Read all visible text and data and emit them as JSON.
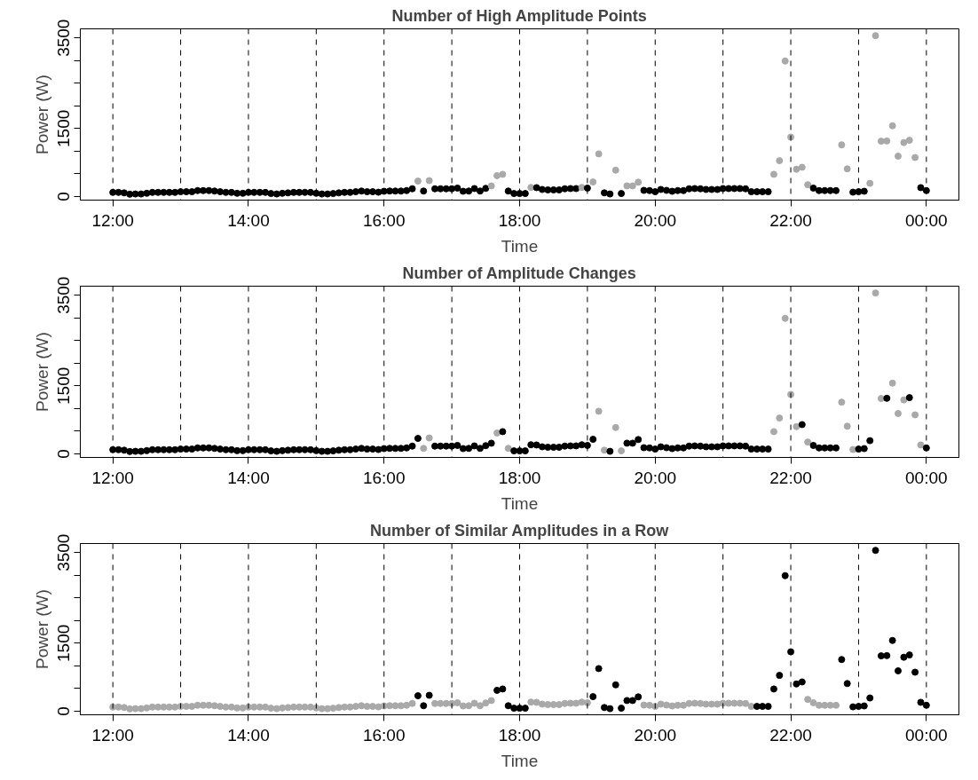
{
  "chart_data": [
    {
      "type": "scatter",
      "title": "Number of High Amplitude Points",
      "xlabel": "Time",
      "ylabel": "Power (W)",
      "marker": "circle",
      "grid": false,
      "xlim": [
        11.52,
        24.48
      ],
      "ylim": [
        -80,
        3700
      ],
      "xticks": [
        {
          "value": 12,
          "label": "12:00"
        },
        {
          "value": 14,
          "label": "14:00"
        },
        {
          "value": 16,
          "label": "16:00"
        },
        {
          "value": 18,
          "label": "18:00"
        },
        {
          "value": 20,
          "label": "20:00"
        },
        {
          "value": 22,
          "label": "22:00"
        },
        {
          "value": 24,
          "label": "00:00"
        }
      ],
      "yticks": [
        0,
        {
          "value": 500,
          "label": null
        },
        {
          "value": 1000,
          "label": null
        },
        1500,
        {
          "value": 2000,
          "label": null
        },
        {
          "value": 2500,
          "label": null
        },
        {
          "value": 3000,
          "label": null
        },
        3500
      ],
      "ref_lines": [
        {
          "axis": "x",
          "value": 12,
          "line_style": "dashed"
        },
        {
          "axis": "x",
          "value": 13,
          "line_style": "dashed"
        },
        {
          "axis": "x",
          "value": 14,
          "line_style": "dashed"
        },
        {
          "axis": "x",
          "value": 15,
          "line_style": "dashed"
        },
        {
          "axis": "x",
          "value": 16,
          "line_style": "dashed"
        },
        {
          "axis": "x",
          "value": 17,
          "line_style": "dashed"
        },
        {
          "axis": "x",
          "value": 18,
          "line_style": "dashed"
        },
        {
          "axis": "x",
          "value": 19,
          "line_style": "dashed"
        },
        {
          "axis": "x",
          "value": 20,
          "line_style": "dashed"
        },
        {
          "axis": "x",
          "value": 21,
          "line_style": "dashed"
        },
        {
          "axis": "x",
          "value": 22,
          "line_style": "dashed"
        },
        {
          "axis": "x",
          "value": 23,
          "line_style": "dashed"
        },
        {
          "axis": "x",
          "value": 24,
          "line_style": "dashed"
        }
      ],
      "x": [
        12,
        12.083,
        12.167,
        12.25,
        12.333,
        12.417,
        12.5,
        12.583,
        12.667,
        12.75,
        12.833,
        12.917,
        13,
        13.083,
        13.167,
        13.25,
        13.333,
        13.417,
        13.5,
        13.583,
        13.667,
        13.75,
        13.833,
        13.917,
        14,
        14.083,
        14.167,
        14.25,
        14.333,
        14.417,
        14.5,
        14.583,
        14.667,
        14.75,
        14.833,
        14.917,
        15,
        15.083,
        15.167,
        15.25,
        15.333,
        15.417,
        15.5,
        15.583,
        15.667,
        15.75,
        15.833,
        15.917,
        16,
        16.083,
        16.167,
        16.25,
        16.333,
        16.417,
        16.5,
        16.583,
        16.667,
        16.75,
        16.833,
        16.917,
        17,
        17.083,
        17.167,
        17.25,
        17.333,
        17.417,
        17.5,
        17.583,
        17.667,
        17.75,
        17.833,
        17.917,
        18,
        18.083,
        18.167,
        18.25,
        18.333,
        18.417,
        18.5,
        18.583,
        18.667,
        18.75,
        18.833,
        18.917,
        19,
        19.083,
        19.167,
        19.25,
        19.333,
        19.417,
        19.5,
        19.583,
        19.667,
        19.75,
        19.833,
        19.917,
        20,
        20.083,
        20.167,
        20.25,
        20.333,
        20.417,
        20.5,
        20.583,
        20.667,
        20.75,
        20.833,
        20.917,
        21,
        21.083,
        21.167,
        21.25,
        21.333,
        21.417,
        21.5,
        21.583,
        21.667,
        21.75,
        21.833,
        21.917,
        22,
        22.083,
        22.167,
        22.25,
        22.333,
        22.417,
        22.5,
        22.583,
        22.667,
        22.75,
        22.833,
        22.917,
        23,
        23.083,
        23.167,
        23.25,
        23.333,
        23.417,
        23.5,
        23.583,
        23.667,
        23.75,
        23.833,
        23.917,
        24
      ],
      "values": [
        90,
        90,
        80,
        50,
        55,
        55,
        70,
        90,
        90,
        90,
        90,
        90,
        105,
        105,
        105,
        130,
        130,
        130,
        120,
        105,
        90,
        90,
        70,
        70,
        90,
        90,
        90,
        90,
        65,
        55,
        70,
        80,
        90,
        90,
        90,
        90,
        70,
        55,
        55,
        65,
        80,
        90,
        90,
        105,
        120,
        105,
        105,
        95,
        115,
        120,
        120,
        120,
        130,
        170,
        340,
        120,
        350,
        170,
        170,
        170,
        170,
        185,
        115,
        120,
        175,
        120,
        180,
        234,
        460,
        490,
        120,
        65,
        65,
        65,
        200,
        195,
        155,
        145,
        145,
        145,
        170,
        175,
        175,
        200,
        185,
        320,
        940,
        80,
        55,
        580,
        65,
        235,
        235,
        315,
        135,
        130,
        105,
        155,
        135,
        115,
        130,
        130,
        170,
        175,
        170,
        155,
        155,
        155,
        175,
        175,
        175,
        175,
        170,
        105,
        105,
        105,
        105,
        490,
        790,
        2990,
        1310,
        600,
        645,
        260,
        185,
        130,
        130,
        130,
        130,
        1140,
        610,
        95,
        105,
        115,
        290,
        3550,
        1220,
        1225,
        1560,
        890,
        1190,
        1240,
        860,
        195,
        130
      ],
      "colors": [
        "#000000",
        "#000000",
        "#000000",
        "#000000",
        "#000000",
        "#000000",
        "#000000",
        "#000000",
        "#000000",
        "#000000",
        "#000000",
        "#000000",
        "#000000",
        "#000000",
        "#000000",
        "#000000",
        "#000000",
        "#000000",
        "#000000",
        "#000000",
        "#000000",
        "#000000",
        "#000000",
        "#000000",
        "#000000",
        "#000000",
        "#000000",
        "#000000",
        "#000000",
        "#000000",
        "#000000",
        "#000000",
        "#000000",
        "#000000",
        "#000000",
        "#000000",
        "#000000",
        "#000000",
        "#000000",
        "#000000",
        "#000000",
        "#000000",
        "#000000",
        "#000000",
        "#000000",
        "#000000",
        "#000000",
        "#000000",
        "#000000",
        "#000000",
        "#000000",
        "#000000",
        "#000000",
        "#000000",
        "#a9a9a9",
        "#000000",
        "#a9a9a9",
        "#000000",
        "#000000",
        "#000000",
        "#000000",
        "#000000",
        "#000000",
        "#000000",
        "#000000",
        "#000000",
        "#000000",
        "#a9a9a9",
        "#a9a9a9",
        "#a9a9a9",
        "#000000",
        "#000000",
        "#000000",
        "#000000",
        "#a9a9a9",
        "#000000",
        "#000000",
        "#000000",
        "#000000",
        "#000000",
        "#000000",
        "#000000",
        "#000000",
        "#a9a9a9",
        "#000000",
        "#a9a9a9",
        "#a9a9a9",
        "#000000",
        "#000000",
        "#a9a9a9",
        "#000000",
        "#a9a9a9",
        "#a9a9a9",
        "#a9a9a9",
        "#000000",
        "#000000",
        "#000000",
        "#000000",
        "#000000",
        "#000000",
        "#000000",
        "#000000",
        "#000000",
        "#000000",
        "#000000",
        "#000000",
        "#000000",
        "#000000",
        "#000000",
        "#000000",
        "#000000",
        "#000000",
        "#000000",
        "#000000",
        "#000000",
        "#000000",
        "#000000",
        "#a9a9a9",
        "#a9a9a9",
        "#a9a9a9",
        "#a9a9a9",
        "#a9a9a9",
        "#a9a9a9",
        "#a9a9a9",
        "#000000",
        "#000000",
        "#000000",
        "#000000",
        "#000000",
        "#a9a9a9",
        "#a9a9a9",
        "#000000",
        "#000000",
        "#000000",
        "#a9a9a9",
        "#a9a9a9",
        "#a9a9a9",
        "#a9a9a9",
        "#a9a9a9",
        "#a9a9a9",
        "#a9a9a9",
        "#a9a9a9",
        "#a9a9a9",
        "#000000",
        "#000000"
      ]
    },
    {
      "type": "scatter",
      "title": "Number of Amplitude Changes",
      "xlabel": "Time",
      "ylabel": "Power (W)",
      "marker": "circle",
      "grid": false,
      "xlim": [
        11.52,
        24.48
      ],
      "ylim": [
        -80,
        3700
      ],
      "xticks": [
        {
          "value": 12,
          "label": "12:00"
        },
        {
          "value": 14,
          "label": "14:00"
        },
        {
          "value": 16,
          "label": "16:00"
        },
        {
          "value": 18,
          "label": "18:00"
        },
        {
          "value": 20,
          "label": "20:00"
        },
        {
          "value": 22,
          "label": "22:00"
        },
        {
          "value": 24,
          "label": "00:00"
        }
      ],
      "yticks": [
        0,
        {
          "value": 500,
          "label": null
        },
        {
          "value": 1000,
          "label": null
        },
        1500,
        {
          "value": 2000,
          "label": null
        },
        {
          "value": 2500,
          "label": null
        },
        {
          "value": 3000,
          "label": null
        },
        3500
      ],
      "ref_lines": [
        {
          "axis": "x",
          "value": 12,
          "line_style": "dashed"
        },
        {
          "axis": "x",
          "value": 13,
          "line_style": "dashed"
        },
        {
          "axis": "x",
          "value": 14,
          "line_style": "dashed"
        },
        {
          "axis": "x",
          "value": 15,
          "line_style": "dashed"
        },
        {
          "axis": "x",
          "value": 16,
          "line_style": "dashed"
        },
        {
          "axis": "x",
          "value": 17,
          "line_style": "dashed"
        },
        {
          "axis": "x",
          "value": 18,
          "line_style": "dashed"
        },
        {
          "axis": "x",
          "value": 19,
          "line_style": "dashed"
        },
        {
          "axis": "x",
          "value": 20,
          "line_style": "dashed"
        },
        {
          "axis": "x",
          "value": 21,
          "line_style": "dashed"
        },
        {
          "axis": "x",
          "value": 22,
          "line_style": "dashed"
        },
        {
          "axis": "x",
          "value": 23,
          "line_style": "dashed"
        },
        {
          "axis": "x",
          "value": 24,
          "line_style": "dashed"
        }
      ],
      "x": [
        12,
        12.083,
        12.167,
        12.25,
        12.333,
        12.417,
        12.5,
        12.583,
        12.667,
        12.75,
        12.833,
        12.917,
        13,
        13.083,
        13.167,
        13.25,
        13.333,
        13.417,
        13.5,
        13.583,
        13.667,
        13.75,
        13.833,
        13.917,
        14,
        14.083,
        14.167,
        14.25,
        14.333,
        14.417,
        14.5,
        14.583,
        14.667,
        14.75,
        14.833,
        14.917,
        15,
        15.083,
        15.167,
        15.25,
        15.333,
        15.417,
        15.5,
        15.583,
        15.667,
        15.75,
        15.833,
        15.917,
        16,
        16.083,
        16.167,
        16.25,
        16.333,
        16.417,
        16.5,
        16.583,
        16.667,
        16.75,
        16.833,
        16.917,
        17,
        17.083,
        17.167,
        17.25,
        17.333,
        17.417,
        17.5,
        17.583,
        17.667,
        17.75,
        17.833,
        17.917,
        18,
        18.083,
        18.167,
        18.25,
        18.333,
        18.417,
        18.5,
        18.583,
        18.667,
        18.75,
        18.833,
        18.917,
        19,
        19.083,
        19.167,
        19.25,
        19.333,
        19.417,
        19.5,
        19.583,
        19.667,
        19.75,
        19.833,
        19.917,
        20,
        20.083,
        20.167,
        20.25,
        20.333,
        20.417,
        20.5,
        20.583,
        20.667,
        20.75,
        20.833,
        20.917,
        21,
        21.083,
        21.167,
        21.25,
        21.333,
        21.417,
        21.5,
        21.583,
        21.667,
        21.75,
        21.833,
        21.917,
        22,
        22.083,
        22.167,
        22.25,
        22.333,
        22.417,
        22.5,
        22.583,
        22.667,
        22.75,
        22.833,
        22.917,
        23,
        23.083,
        23.167,
        23.25,
        23.333,
        23.417,
        23.5,
        23.583,
        23.667,
        23.75,
        23.833,
        23.917,
        24
      ],
      "values": [
        90,
        90,
        80,
        50,
        55,
        55,
        70,
        90,
        90,
        90,
        90,
        90,
        105,
        105,
        105,
        130,
        130,
        130,
        120,
        105,
        90,
        90,
        70,
        70,
        90,
        90,
        90,
        90,
        65,
        55,
        70,
        80,
        90,
        90,
        90,
        90,
        70,
        55,
        55,
        65,
        80,
        90,
        90,
        105,
        120,
        105,
        105,
        95,
        115,
        120,
        120,
        120,
        130,
        170,
        340,
        120,
        350,
        170,
        170,
        170,
        170,
        185,
        115,
        120,
        175,
        120,
        180,
        234,
        460,
        490,
        120,
        65,
        65,
        65,
        200,
        195,
        155,
        145,
        145,
        145,
        170,
        175,
        175,
        200,
        185,
        320,
        940,
        80,
        55,
        580,
        65,
        235,
        235,
        315,
        135,
        130,
        105,
        155,
        135,
        115,
        130,
        130,
        170,
        175,
        170,
        155,
        155,
        155,
        175,
        175,
        175,
        175,
        170,
        105,
        105,
        105,
        105,
        490,
        790,
        2990,
        1310,
        600,
        645,
        260,
        185,
        130,
        130,
        130,
        130,
        1140,
        610,
        95,
        105,
        115,
        290,
        3550,
        1220,
        1225,
        1560,
        890,
        1190,
        1240,
        860,
        195,
        130
      ],
      "colors": [
        "#000000",
        "#000000",
        "#000000",
        "#000000",
        "#000000",
        "#000000",
        "#000000",
        "#000000",
        "#000000",
        "#000000",
        "#000000",
        "#000000",
        "#000000",
        "#000000",
        "#000000",
        "#000000",
        "#000000",
        "#000000",
        "#000000",
        "#000000",
        "#000000",
        "#000000",
        "#000000",
        "#000000",
        "#000000",
        "#000000",
        "#000000",
        "#000000",
        "#000000",
        "#000000",
        "#000000",
        "#000000",
        "#000000",
        "#000000",
        "#000000",
        "#000000",
        "#000000",
        "#000000",
        "#000000",
        "#000000",
        "#000000",
        "#000000",
        "#000000",
        "#000000",
        "#000000",
        "#000000",
        "#000000",
        "#000000",
        "#000000",
        "#000000",
        "#000000",
        "#000000",
        "#000000",
        "#000000",
        "#000000",
        "#a9a9a9",
        "#a9a9a9",
        "#000000",
        "#000000",
        "#000000",
        "#000000",
        "#000000",
        "#000000",
        "#000000",
        "#000000",
        "#000000",
        "#000000",
        "#000000",
        "#a9a9a9",
        "#000000",
        "#a9a9a9",
        "#000000",
        "#000000",
        "#000000",
        "#000000",
        "#000000",
        "#000000",
        "#000000",
        "#000000",
        "#000000",
        "#000000",
        "#000000",
        "#000000",
        "#000000",
        "#000000",
        "#000000",
        "#a9a9a9",
        "#a9a9a9",
        "#000000",
        "#a9a9a9",
        "#a9a9a9",
        "#000000",
        "#000000",
        "#000000",
        "#000000",
        "#000000",
        "#000000",
        "#000000",
        "#000000",
        "#000000",
        "#000000",
        "#000000",
        "#000000",
        "#000000",
        "#000000",
        "#000000",
        "#000000",
        "#000000",
        "#000000",
        "#000000",
        "#000000",
        "#000000",
        "#000000",
        "#000000",
        "#000000",
        "#000000",
        "#000000",
        "#a9a9a9",
        "#a9a9a9",
        "#a9a9a9",
        "#a9a9a9",
        "#a9a9a9",
        "#000000",
        "#a9a9a9",
        "#000000",
        "#000000",
        "#000000",
        "#000000",
        "#000000",
        "#a9a9a9",
        "#a9a9a9",
        "#a9a9a9",
        "#000000",
        "#000000",
        "#000000",
        "#a9a9a9",
        "#a9a9a9",
        "#000000",
        "#a9a9a9",
        "#a9a9a9",
        "#a9a9a9",
        "#000000",
        "#a9a9a9",
        "#a9a9a9",
        "#000000"
      ]
    },
    {
      "type": "scatter",
      "title": "Number of Similar Amplitudes in a Row",
      "xlabel": "Time",
      "ylabel": "Power (W)",
      "marker": "circle",
      "grid": false,
      "xlim": [
        11.52,
        24.48
      ],
      "ylim": [
        -80,
        3700
      ],
      "xticks": [
        {
          "value": 12,
          "label": "12:00"
        },
        {
          "value": 14,
          "label": "14:00"
        },
        {
          "value": 16,
          "label": "16:00"
        },
        {
          "value": 18,
          "label": "18:00"
        },
        {
          "value": 20,
          "label": "20:00"
        },
        {
          "value": 22,
          "label": "22:00"
        },
        {
          "value": 24,
          "label": "00:00"
        }
      ],
      "yticks": [
        0,
        {
          "value": 500,
          "label": null
        },
        {
          "value": 1000,
          "label": null
        },
        1500,
        {
          "value": 2000,
          "label": null
        },
        {
          "value": 2500,
          "label": null
        },
        {
          "value": 3000,
          "label": null
        },
        3500
      ],
      "ref_lines": [
        {
          "axis": "x",
          "value": 12,
          "line_style": "dashed"
        },
        {
          "axis": "x",
          "value": 13,
          "line_style": "dashed"
        },
        {
          "axis": "x",
          "value": 14,
          "line_style": "dashed"
        },
        {
          "axis": "x",
          "value": 15,
          "line_style": "dashed"
        },
        {
          "axis": "x",
          "value": 16,
          "line_style": "dashed"
        },
        {
          "axis": "x",
          "value": 17,
          "line_style": "dashed"
        },
        {
          "axis": "x",
          "value": 18,
          "line_style": "dashed"
        },
        {
          "axis": "x",
          "value": 19,
          "line_style": "dashed"
        },
        {
          "axis": "x",
          "value": 20,
          "line_style": "dashed"
        },
        {
          "axis": "x",
          "value": 21,
          "line_style": "dashed"
        },
        {
          "axis": "x",
          "value": 22,
          "line_style": "dashed"
        },
        {
          "axis": "x",
          "value": 23,
          "line_style": "dashed"
        },
        {
          "axis": "x",
          "value": 24,
          "line_style": "dashed"
        }
      ],
      "x": [
        12,
        12.083,
        12.167,
        12.25,
        12.333,
        12.417,
        12.5,
        12.583,
        12.667,
        12.75,
        12.833,
        12.917,
        13,
        13.083,
        13.167,
        13.25,
        13.333,
        13.417,
        13.5,
        13.583,
        13.667,
        13.75,
        13.833,
        13.917,
        14,
        14.083,
        14.167,
        14.25,
        14.333,
        14.417,
        14.5,
        14.583,
        14.667,
        14.75,
        14.833,
        14.917,
        15,
        15.083,
        15.167,
        15.25,
        15.333,
        15.417,
        15.5,
        15.583,
        15.667,
        15.75,
        15.833,
        15.917,
        16,
        16.083,
        16.167,
        16.25,
        16.333,
        16.417,
        16.5,
        16.583,
        16.667,
        16.75,
        16.833,
        16.917,
        17,
        17.083,
        17.167,
        17.25,
        17.333,
        17.417,
        17.5,
        17.583,
        17.667,
        17.75,
        17.833,
        17.917,
        18,
        18.083,
        18.167,
        18.25,
        18.333,
        18.417,
        18.5,
        18.583,
        18.667,
        18.75,
        18.833,
        18.917,
        19,
        19.083,
        19.167,
        19.25,
        19.333,
        19.417,
        19.5,
        19.583,
        19.667,
        19.75,
        19.833,
        19.917,
        20,
        20.083,
        20.167,
        20.25,
        20.333,
        20.417,
        20.5,
        20.583,
        20.667,
        20.75,
        20.833,
        20.917,
        21,
        21.083,
        21.167,
        21.25,
        21.333,
        21.417,
        21.5,
        21.583,
        21.667,
        21.75,
        21.833,
        21.917,
        22,
        22.083,
        22.167,
        22.25,
        22.333,
        22.417,
        22.5,
        22.583,
        22.667,
        22.75,
        22.833,
        22.917,
        23,
        23.083,
        23.167,
        23.25,
        23.333,
        23.417,
        23.5,
        23.583,
        23.667,
        23.75,
        23.833,
        23.917,
        24
      ],
      "values": [
        90,
        90,
        80,
        50,
        55,
        55,
        70,
        90,
        90,
        90,
        90,
        90,
        105,
        105,
        105,
        130,
        130,
        130,
        120,
        105,
        90,
        90,
        70,
        70,
        90,
        90,
        90,
        90,
        65,
        55,
        70,
        80,
        90,
        90,
        90,
        90,
        70,
        55,
        55,
        65,
        80,
        90,
        90,
        105,
        120,
        105,
        105,
        95,
        115,
        120,
        120,
        120,
        130,
        170,
        340,
        120,
        350,
        170,
        170,
        170,
        170,
        185,
        115,
        120,
        175,
        120,
        180,
        234,
        460,
        490,
        120,
        65,
        65,
        65,
        200,
        195,
        155,
        145,
        145,
        145,
        170,
        175,
        175,
        200,
        185,
        320,
        940,
        80,
        55,
        580,
        65,
        235,
        235,
        315,
        135,
        130,
        105,
        155,
        135,
        115,
        130,
        130,
        170,
        175,
        170,
        155,
        155,
        155,
        175,
        175,
        175,
        175,
        170,
        105,
        105,
        105,
        105,
        490,
        790,
        2990,
        1310,
        600,
        645,
        260,
        185,
        130,
        130,
        130,
        130,
        1140,
        610,
        95,
        105,
        115,
        290,
        3550,
        1220,
        1225,
        1560,
        890,
        1190,
        1240,
        860,
        195,
        130
      ],
      "colors": [
        "#a9a9a9",
        "#a9a9a9",
        "#a9a9a9",
        "#a9a9a9",
        "#a9a9a9",
        "#a9a9a9",
        "#a9a9a9",
        "#a9a9a9",
        "#a9a9a9",
        "#a9a9a9",
        "#a9a9a9",
        "#a9a9a9",
        "#a9a9a9",
        "#a9a9a9",
        "#a9a9a9",
        "#a9a9a9",
        "#a9a9a9",
        "#a9a9a9",
        "#a9a9a9",
        "#a9a9a9",
        "#a9a9a9",
        "#a9a9a9",
        "#a9a9a9",
        "#a9a9a9",
        "#a9a9a9",
        "#a9a9a9",
        "#a9a9a9",
        "#a9a9a9",
        "#a9a9a9",
        "#a9a9a9",
        "#a9a9a9",
        "#a9a9a9",
        "#a9a9a9",
        "#a9a9a9",
        "#a9a9a9",
        "#a9a9a9",
        "#a9a9a9",
        "#a9a9a9",
        "#a9a9a9",
        "#a9a9a9",
        "#a9a9a9",
        "#a9a9a9",
        "#a9a9a9",
        "#a9a9a9",
        "#a9a9a9",
        "#a9a9a9",
        "#a9a9a9",
        "#a9a9a9",
        "#a9a9a9",
        "#a9a9a9",
        "#a9a9a9",
        "#a9a9a9",
        "#a9a9a9",
        "#a9a9a9",
        "#000000",
        "#000000",
        "#000000",
        "#a9a9a9",
        "#a9a9a9",
        "#a9a9a9",
        "#a9a9a9",
        "#a9a9a9",
        "#a9a9a9",
        "#a9a9a9",
        "#a9a9a9",
        "#a9a9a9",
        "#a9a9a9",
        "#a9a9a9",
        "#000000",
        "#000000",
        "#000000",
        "#000000",
        "#000000",
        "#000000",
        "#a9a9a9",
        "#a9a9a9",
        "#a9a9a9",
        "#a9a9a9",
        "#a9a9a9",
        "#a9a9a9",
        "#a9a9a9",
        "#a9a9a9",
        "#a9a9a9",
        "#a9a9a9",
        "#a9a9a9",
        "#000000",
        "#000000",
        "#000000",
        "#000000",
        "#000000",
        "#000000",
        "#000000",
        "#000000",
        "#000000",
        "#a9a9a9",
        "#a9a9a9",
        "#a9a9a9",
        "#a9a9a9",
        "#a9a9a9",
        "#a9a9a9",
        "#a9a9a9",
        "#a9a9a9",
        "#a9a9a9",
        "#a9a9a9",
        "#a9a9a9",
        "#a9a9a9",
        "#a9a9a9",
        "#a9a9a9",
        "#a9a9a9",
        "#a9a9a9",
        "#a9a9a9",
        "#a9a9a9",
        "#a9a9a9",
        "#a9a9a9",
        "#000000",
        "#000000",
        "#000000",
        "#000000",
        "#000000",
        "#000000",
        "#000000",
        "#000000",
        "#000000",
        "#a9a9a9",
        "#a9a9a9",
        "#a9a9a9",
        "#a9a9a9",
        "#a9a9a9",
        "#a9a9a9",
        "#000000",
        "#000000",
        "#000000",
        "#000000",
        "#000000",
        "#000000",
        "#000000",
        "#000000",
        "#000000",
        "#000000",
        "#000000",
        "#000000",
        "#000000",
        "#000000",
        "#000000",
        "#000000"
      ]
    }
  ]
}
